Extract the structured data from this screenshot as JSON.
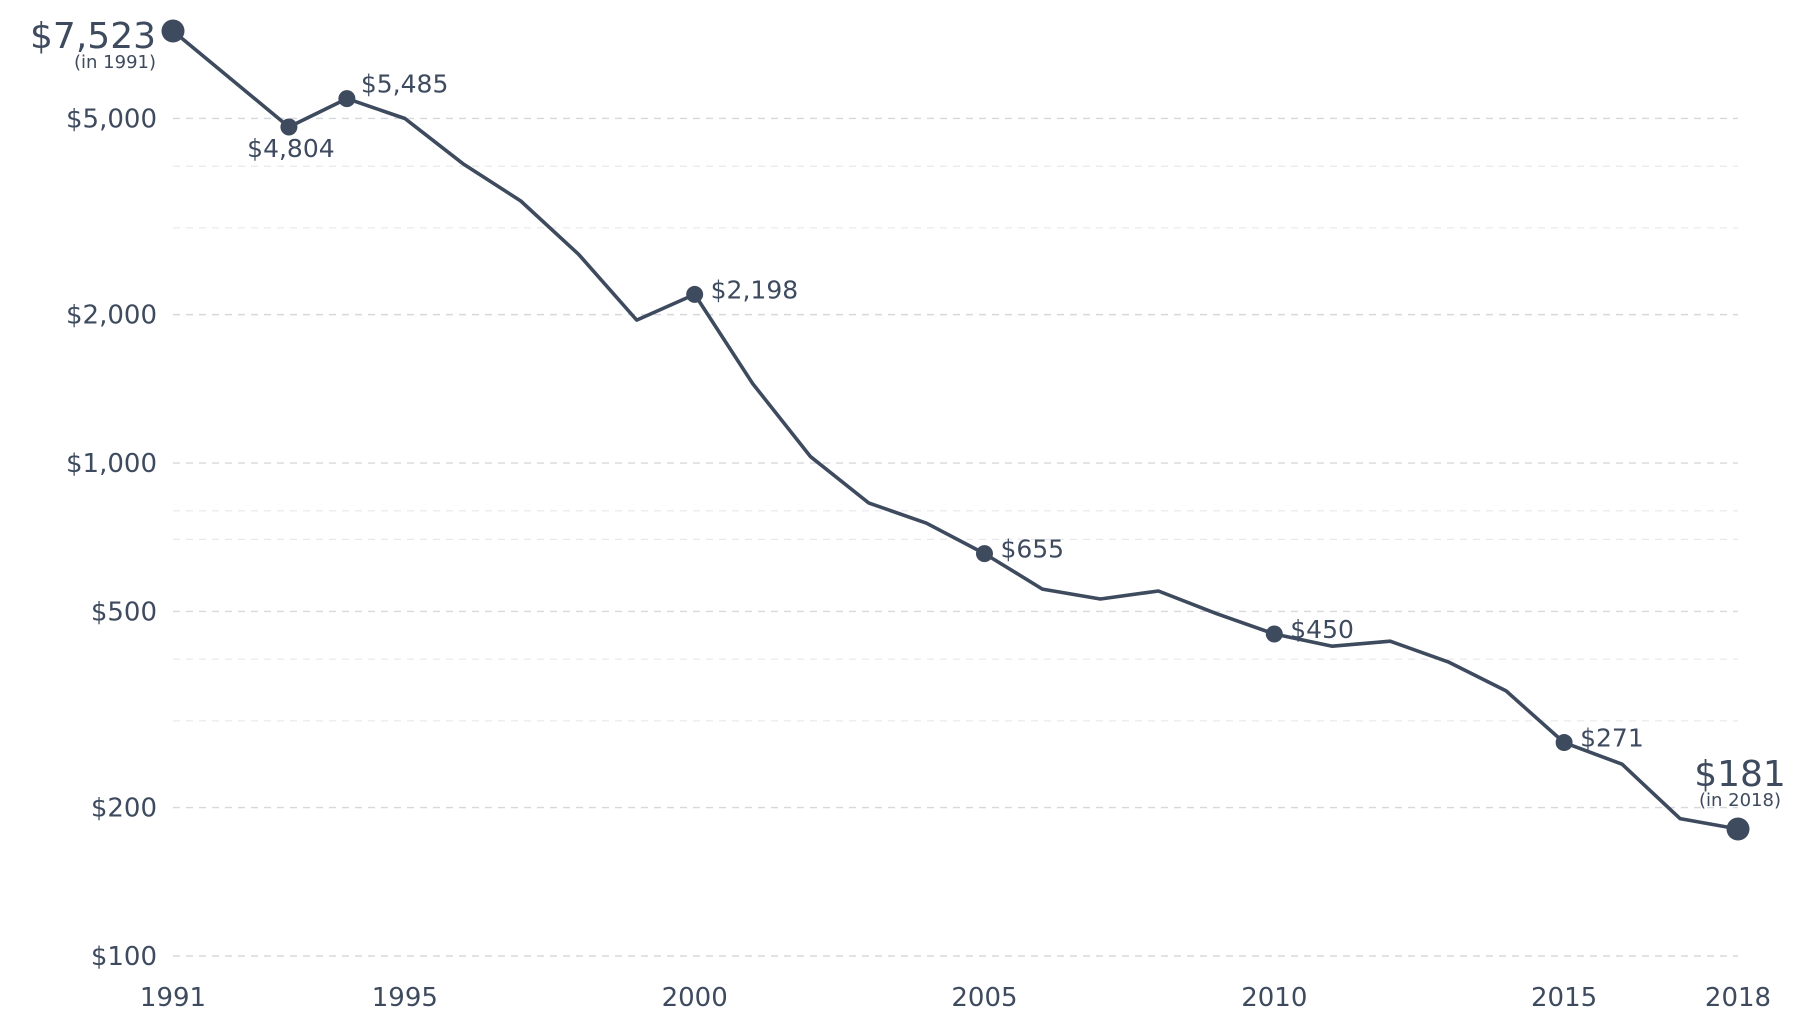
{
  "chart_data": {
    "type": "line",
    "title": "",
    "xlabel": "",
    "ylabel": "",
    "y_scale": "log",
    "ylim": [
      100,
      7523
    ],
    "xlim": [
      1991,
      2018
    ],
    "grid": true,
    "color": "#3e4a5e",
    "x_ticks": [
      {
        "value": 1991,
        "label": "1991"
      },
      {
        "value": 1995,
        "label": "1995"
      },
      {
        "value": 2000,
        "label": "2000"
      },
      {
        "value": 2005,
        "label": "2005"
      },
      {
        "value": 2010,
        "label": "2010"
      },
      {
        "value": 2015,
        "label": "2015"
      },
      {
        "value": 2018,
        "label": "2018"
      }
    ],
    "y_ticks": [
      {
        "value": 5000,
        "label": "$5,000"
      },
      {
        "value": 2000,
        "label": "$2,000"
      },
      {
        "value": 1000,
        "label": "$1,000"
      },
      {
        "value": 500,
        "label": "$500"
      },
      {
        "value": 200,
        "label": "$200"
      },
      {
        "value": 100,
        "label": "$100"
      }
    ],
    "minor_grid_values": [
      4000,
      3000,
      800,
      700,
      400,
      300
    ],
    "series": [
      {
        "x": [
          1991,
          1993,
          1994,
          1995,
          1996,
          1997,
          1998,
          1999,
          2000,
          2001,
          2002,
          2003,
          2004,
          2005,
          2006,
          2007,
          2008,
          2009,
          2010,
          2011,
          2012,
          2013,
          2014,
          2015,
          2016,
          2017,
          2018
        ],
        "y": [
          7523,
          4804,
          5485,
          5000,
          4050,
          3400,
          2650,
          1950,
          2198,
          1450,
          1030,
          830,
          755,
          655,
          555,
          530,
          550,
          495,
          450,
          425,
          435,
          395,
          345,
          271,
          245,
          190,
          181
        ]
      }
    ],
    "annotations": [
      {
        "x": 1993,
        "y": 4804,
        "label": "$4,804",
        "position": "below"
      },
      {
        "x": 1994,
        "y": 5485,
        "label": "$5,485",
        "position": "above-right"
      },
      {
        "x": 2000,
        "y": 2198,
        "label": "$2,198",
        "position": "right"
      },
      {
        "x": 2005,
        "y": 655,
        "label": "$655",
        "position": "right"
      },
      {
        "x": 2010,
        "y": 450,
        "label": "$450",
        "position": "right"
      },
      {
        "x": 2015,
        "y": 271,
        "label": "$271",
        "position": "right"
      }
    ],
    "end_labels": [
      {
        "x": 1991,
        "y": 7523,
        "label": "$7,523",
        "note": "(in 1991)",
        "position": "left"
      },
      {
        "x": 2018,
        "y": 181,
        "label": "$181",
        "note": "(in 2018)",
        "position": "above"
      }
    ]
  }
}
